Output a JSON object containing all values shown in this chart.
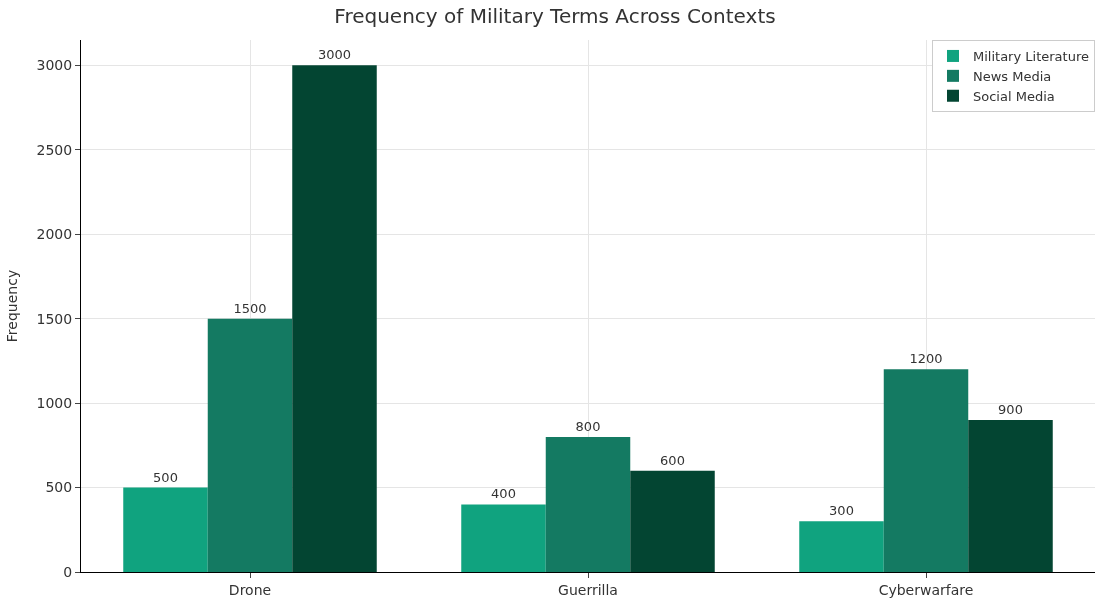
{
  "chart_data": {
    "type": "bar",
    "title": "Frequency of Military Terms Across Contexts",
    "ylabel": "Frequency",
    "categories": [
      "Drone",
      "Guerrilla",
      "Cyberwarfare"
    ],
    "series": [
      {
        "name": "Military Literature",
        "color": "#10a37f",
        "values": [
          500,
          400,
          300
        ]
      },
      {
        "name": "News Media",
        "color": "#147a62",
        "values": [
          1500,
          800,
          1200
        ]
      },
      {
        "name": "Social Media",
        "color": "#034532",
        "values": [
          3000,
          600,
          900
        ]
      }
    ],
    "ylim": [
      0,
      3150
    ],
    "yticks": [
      0,
      500,
      1000,
      1500,
      2000,
      2500,
      3000
    ],
    "grid": true,
    "legend": "top right",
    "data_labels": true
  }
}
